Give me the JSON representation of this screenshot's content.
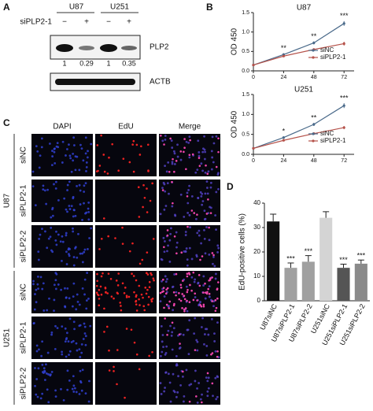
{
  "panel_labels": [
    "A",
    "B",
    "C",
    "D"
  ],
  "blot": {
    "cell_lines": [
      "U87",
      "U251"
    ],
    "treatment_label": "siPLP2-1",
    "treatment_signs": [
      "−",
      "+",
      "−",
      "+"
    ],
    "proteins": [
      "PLP2",
      "ACTB"
    ],
    "quantification": [
      1,
      0.29,
      1,
      0.35
    ]
  },
  "microscopy": {
    "channels": [
      "DAPI",
      "EdU",
      "Merge"
    ],
    "groups": [
      {
        "name": "U87",
        "rows": [
          "siNC",
          "siPLP2-1",
          "siPLP2-2"
        ]
      },
      {
        "name": "U251",
        "rows": [
          "siNC",
          "siPLP2-1",
          "siPLP2-2"
        ]
      }
    ]
  },
  "chart_data": [
    {
      "type": "line",
      "title": "U87",
      "ylabel": "OD 450",
      "x": [
        0,
        24,
        48,
        72
      ],
      "xlim": [
        0,
        80
      ],
      "xticks": [
        0,
        24,
        48,
        72
      ],
      "ylim": [
        0,
        1.5
      ],
      "yticks": [
        {
          "value": 0,
          "label": "0.0"
        },
        0.5,
        {
          "value": 1,
          "label": "1.0"
        },
        1.5
      ],
      "legend": "lower right",
      "significance": [
        null,
        "**",
        "**",
        "***"
      ],
      "series": [
        {
          "name": "siNC",
          "color": "#4a6a8a",
          "values": [
            0.15,
            0.42,
            0.72,
            1.22
          ],
          "errors": [
            0.01,
            0.03,
            0.04,
            0.06
          ]
        },
        {
          "name": "siPLP2-1",
          "color": "#b5524a",
          "values": [
            0.15,
            0.38,
            0.55,
            0.7
          ],
          "errors": [
            0.01,
            0.02,
            0.03,
            0.05
          ]
        }
      ]
    },
    {
      "type": "line",
      "title": "U251",
      "ylabel": "OD 450",
      "x": [
        0,
        24,
        48,
        72
      ],
      "xlim": [
        0,
        80
      ],
      "xticks": [
        0,
        24,
        48,
        72
      ],
      "ylim": [
        0,
        1.5
      ],
      "yticks": [
        {
          "value": 0,
          "label": "0.0"
        },
        0.5,
        {
          "value": 1,
          "label": "1.0"
        },
        1.5
      ],
      "legend": "lower right",
      "significance": [
        null,
        "*",
        "**",
        "***"
      ],
      "series": [
        {
          "name": "siNC",
          "color": "#4a6a8a",
          "values": [
            0.15,
            0.42,
            0.75,
            1.22
          ],
          "errors": [
            0.01,
            0.03,
            0.04,
            0.06
          ]
        },
        {
          "name": "siPLP2-1",
          "color": "#b5524a",
          "values": [
            0.15,
            0.35,
            0.52,
            0.67
          ],
          "errors": [
            0.01,
            0.02,
            0.03,
            0.04
          ]
        }
      ]
    },
    {
      "type": "bar",
      "ylabel": "EdU-positive cells (%)",
      "categories": [
        "U87siNC",
        "U87siPLP2-1",
        "U87siPLP2-2",
        "U251siNC",
        "U251siPLP2-1",
        "U251siPLP2-2"
      ],
      "values": [
        32.5,
        13.5,
        16,
        34,
        13.5,
        15.2
      ],
      "errors": [
        3,
        2,
        2.5,
        2.5,
        1.5,
        1.5
      ],
      "colors": [
        "#111111",
        "#a0a0a0",
        "#a0a0a0",
        "#d4d4d4",
        "#555555",
        "#8a8a8a"
      ],
      "significance": [
        null,
        "***",
        "***",
        null,
        "***",
        "***"
      ],
      "ylim": [
        0,
        40
      ],
      "yticks": [
        0,
        10,
        20,
        30,
        40
      ]
    }
  ]
}
